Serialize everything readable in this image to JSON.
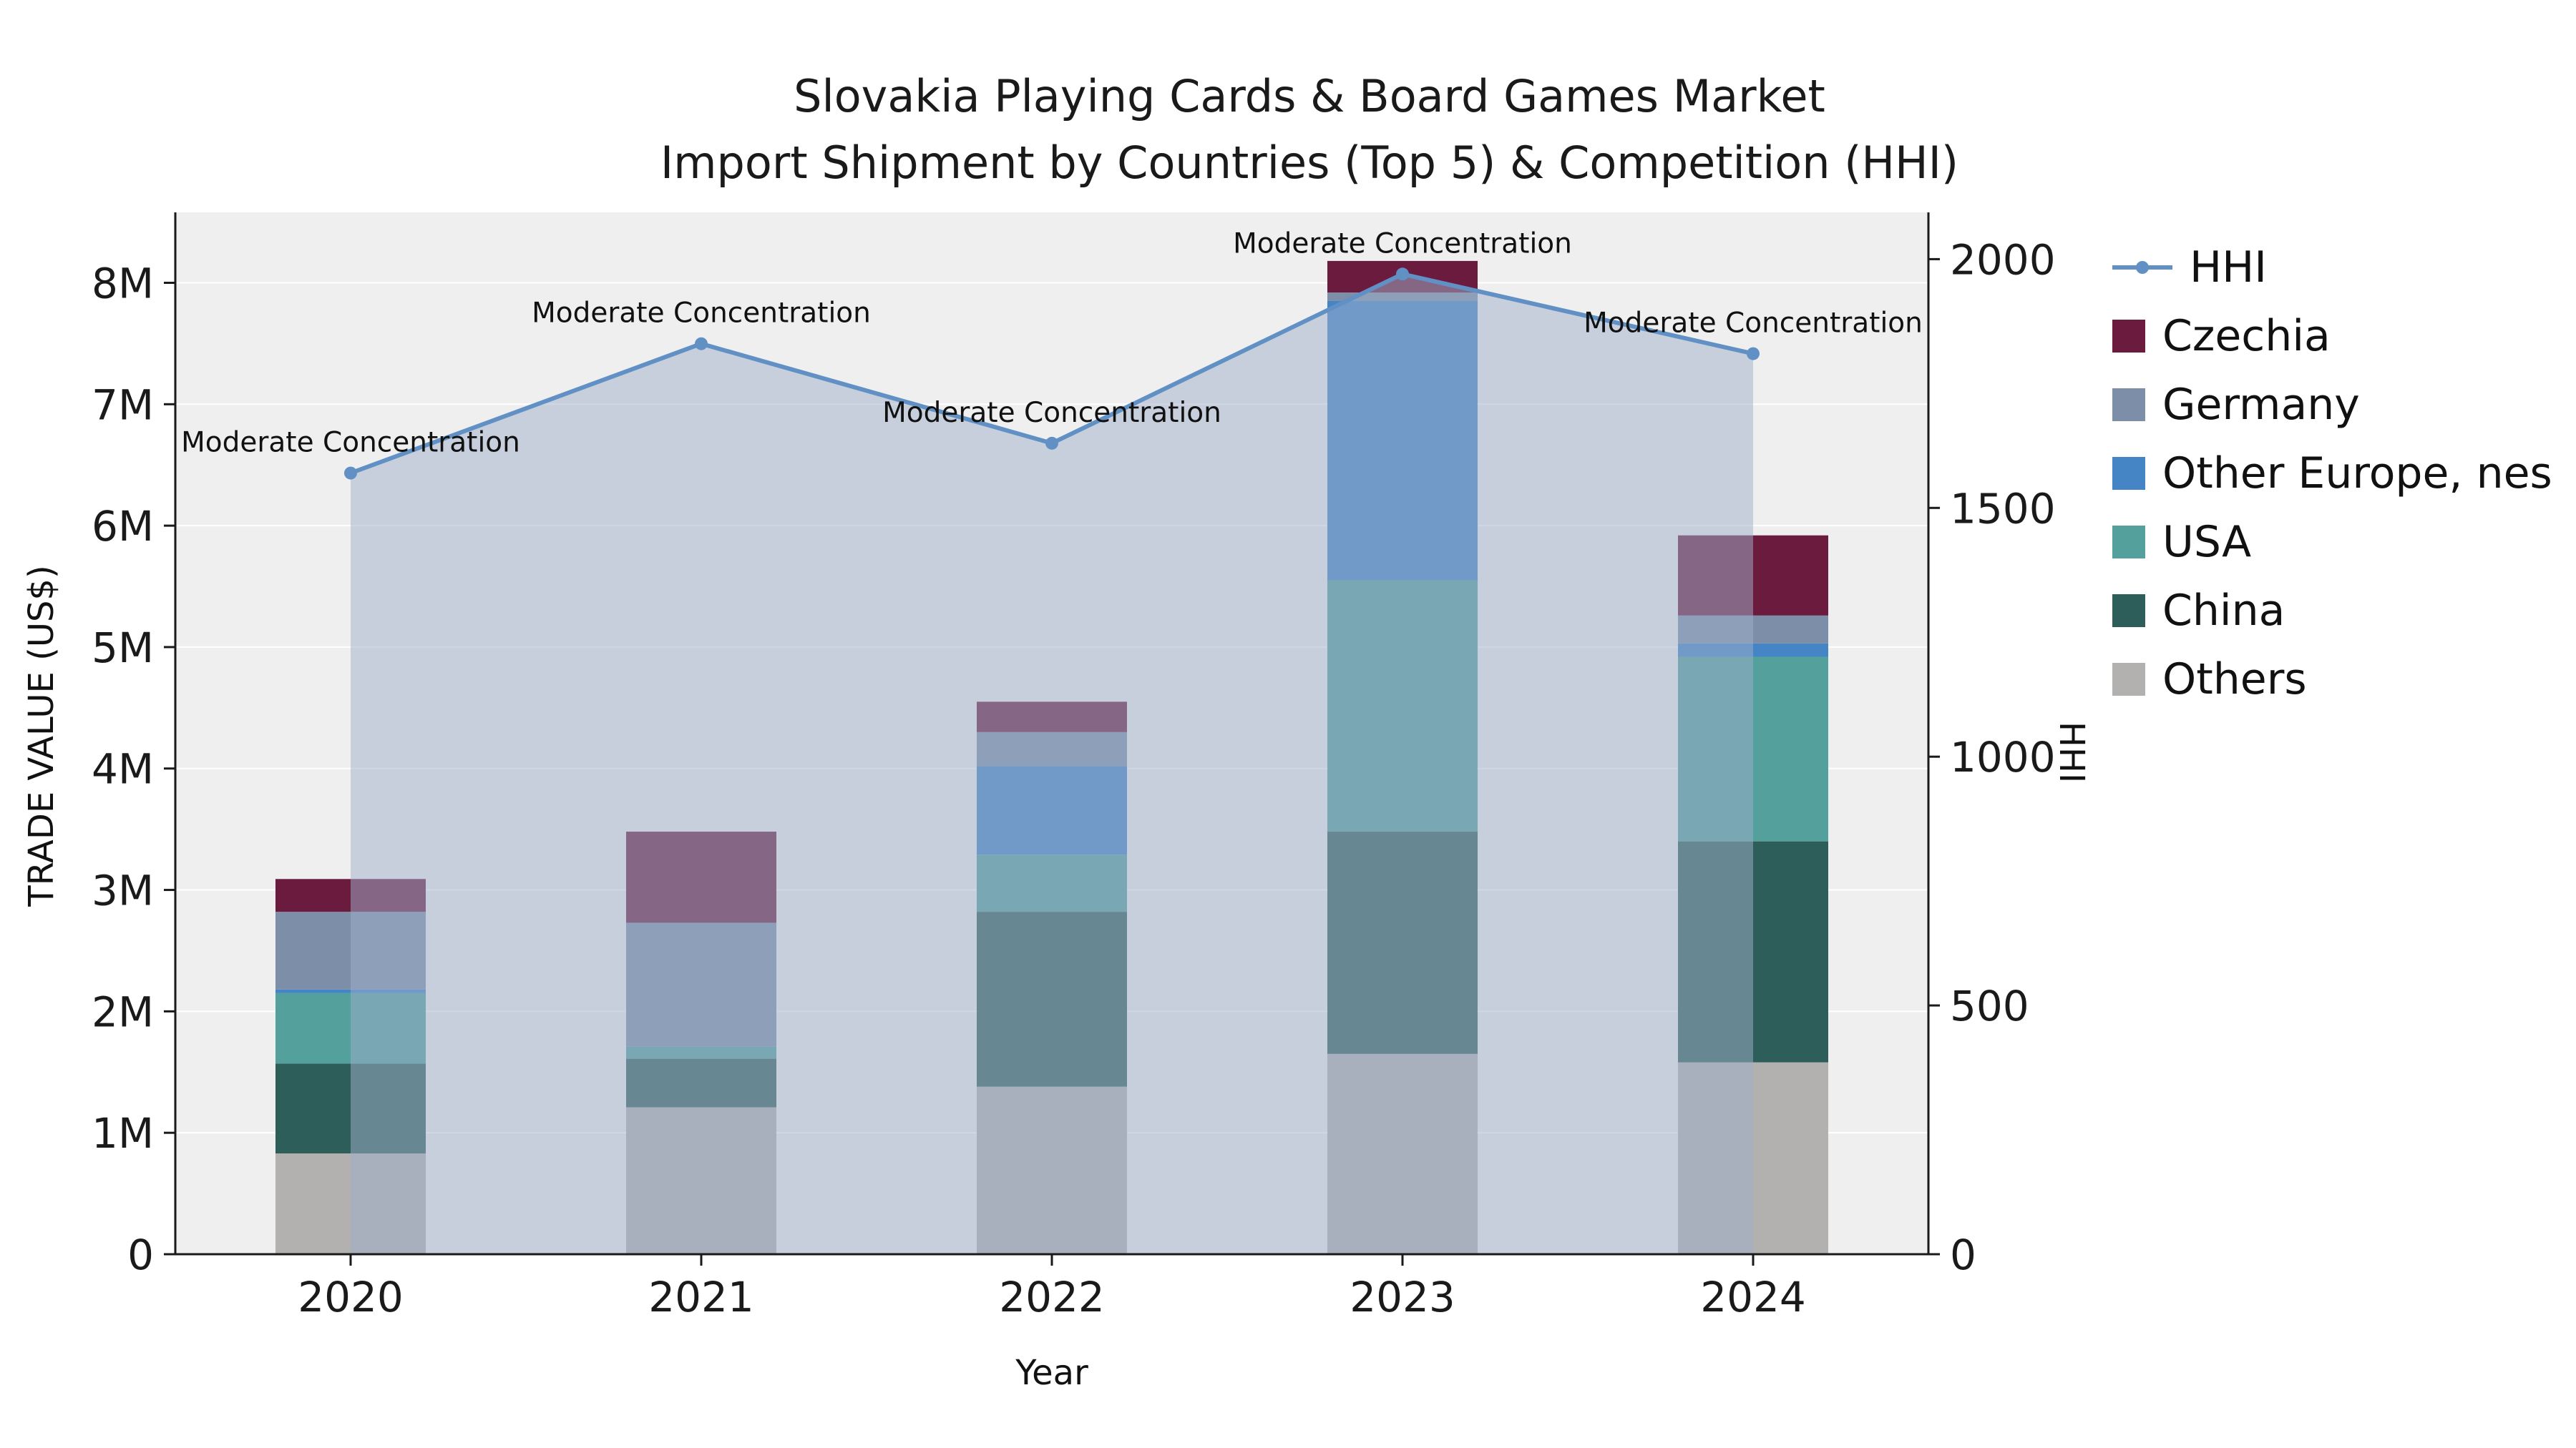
{
  "title": {
    "line1": "Slovakia Playing Cards & Board Games Market",
    "line2": "Import Shipment by Countries (Top 5) & Competition (HHI)"
  },
  "axes": {
    "xlabel": "Year",
    "ylabel_left": "TRADE VALUE (US$)",
    "ylabel_right": "HHI"
  },
  "chart_data": {
    "type": "bar",
    "subtype": "stacked-bars-with-line-overlay",
    "title": "Slovakia Playing Cards & Board Games Market Import Shipment by Countries (Top 5) & Competition (HHI)",
    "categories": [
      "2020",
      "2021",
      "2022",
      "2023",
      "2024"
    ],
    "bar_unit": "Million US$",
    "bar_series": [
      {
        "name": "Others",
        "color": "#b3b1af",
        "values": [
          0.83,
          1.21,
          1.38,
          1.65,
          1.58
        ]
      },
      {
        "name": "China",
        "color": "#2e5e5a",
        "values": [
          0.74,
          0.4,
          1.44,
          1.83,
          1.82
        ]
      },
      {
        "name": "USA",
        "color": "#53a09d",
        "values": [
          0.58,
          0.1,
          0.47,
          2.07,
          1.52
        ]
      },
      {
        "name": "Other Europe, nes",
        "color": "#4585c5",
        "values": [
          0.03,
          0.0,
          0.73,
          2.3,
          0.11
        ]
      },
      {
        "name": "Germany",
        "color": "#7d8fa8",
        "values": [
          0.64,
          1.02,
          0.28,
          0.07,
          0.23
        ]
      },
      {
        "name": "Czechia",
        "color": "#6b1c3e",
        "values": [
          0.27,
          0.75,
          0.25,
          0.26,
          0.66
        ]
      }
    ],
    "line_series": {
      "name": "HHI",
      "color": "#6191c4",
      "marker": "circle",
      "values": [
        1570,
        1830,
        1630,
        1970,
        1810
      ],
      "area_fill": "#9fb0cc",
      "area_opacity": 0.5
    },
    "annotations": [
      "Moderate Concentration",
      "Moderate Concentration",
      "Moderate Concentration",
      "Moderate Concentration",
      "Moderate Concentration"
    ],
    "y_left": {
      "min": 0,
      "max": 8.58,
      "ticks": [
        0,
        1,
        2,
        3,
        4,
        5,
        6,
        7,
        8
      ],
      "tick_labels": [
        "0",
        "1M",
        "2M",
        "3M",
        "4M",
        "5M",
        "6M",
        "7M",
        "8M"
      ]
    },
    "y_right": {
      "min": 0,
      "max": 2094,
      "ticks": [
        0,
        500,
        1000,
        1500,
        2000
      ],
      "tick_labels": [
        "0",
        "500",
        "1000",
        "1500",
        "2000"
      ]
    },
    "legend_order": [
      "HHI",
      "Czechia",
      "Germany",
      "Other Europe, nes",
      "USA",
      "China",
      "Others"
    ],
    "plot_background": "#efefef",
    "grid_color": "#ffffff",
    "legend_position": "outside-top-right"
  }
}
